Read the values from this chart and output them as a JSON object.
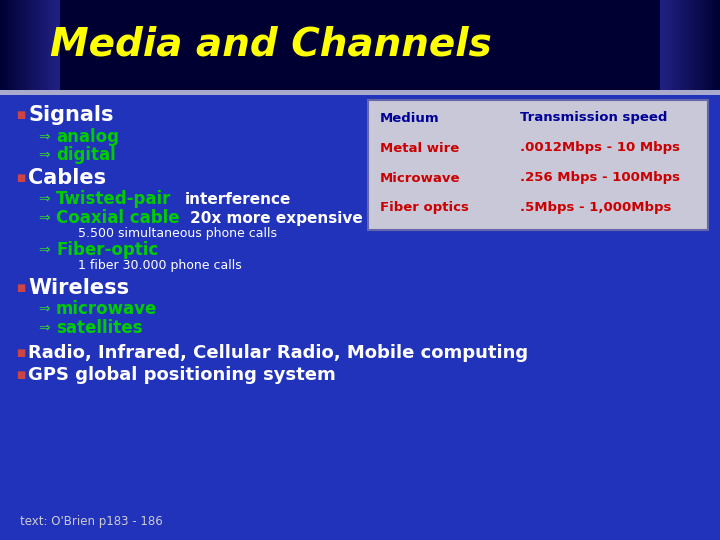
{
  "title": "Media and Channels",
  "title_color": "#FFFF00",
  "title_fontsize": 28,
  "bg_color": "#2233bb",
  "title_bar_color": "#000033",
  "deco_bar_color": "#9999cc",
  "bullet_color": "#FFFFFF",
  "sub_color": "#00cc00",
  "body_color": "#FFFFFF",
  "table_bg": "#c8c8d8",
  "table_border_color": "#6666aa",
  "table_header_color": "#000099",
  "table_row_color": "#cc0000",
  "table_header": [
    "Medium",
    "Transmission speed"
  ],
  "table_rows": [
    [
      "Metal wire",
      ".0012Mbps - 10 Mbps"
    ],
    [
      "Microwave",
      ".256 Mbps - 100Mbps"
    ],
    [
      "Fiber optics",
      ".5Mbps - 1,000Mbps"
    ]
  ],
  "footer": "text: O'Brien p183 - 186",
  "footer_color": "#cccccc",
  "bullet_sq_color": "#cc4444",
  "arrow_color": "#33cc33"
}
